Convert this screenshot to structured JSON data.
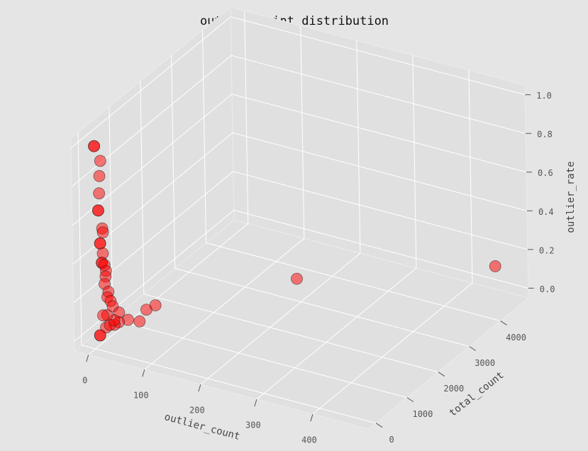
{
  "chart_data": {
    "type": "scatter3d",
    "title": "outlier point distribution",
    "xlabel": "outlier_count",
    "ylabel": "total_count",
    "zlabel": "outlier_rate",
    "xlim": [
      -25,
      500
    ],
    "ylim": [
      -230,
      4900
    ],
    "zlim": [
      -0.05,
      1.05
    ],
    "xticks": [
      0,
      100,
      200,
      300,
      400
    ],
    "yticks": [
      0,
      1000,
      2000,
      3000,
      4000
    ],
    "zticks": [
      {
        "value": 0,
        "label": "0.0"
      },
      0.2,
      0.4,
      0.6,
      0.8,
      {
        "value": 1,
        "label": "1.0"
      }
    ],
    "grid": true,
    "series": [
      {
        "color": "#ff0000",
        "x": [
          3,
          3,
          13,
          11,
          10,
          8,
          8,
          14,
          15,
          10,
          10,
          14,
          12,
          12,
          16,
          18,
          17,
          15,
          20,
          18,
          22,
          24,
          30,
          8,
          0,
          0,
          25,
          30,
          35,
          40,
          20,
          15,
          12,
          20,
          15,
          10,
          193,
          450
        ],
        "y": [
          3,
          3,
          14,
          13,
          13,
          12,
          12,
          24,
          27,
          20,
          20,
          31,
          30,
          30,
          41,
          50,
          52,
          52,
          80,
          82,
          110,
          141,
          231,
          200,
          150,
          150,
          600,
          1100,
          1300,
          700,
          400,
          350,
          250,
          250,
          120,
          80,
          3000,
          4750
        ],
        "z": [
          1.0,
          1.0,
          0.93,
          0.85,
          0.76,
          0.67,
          0.67,
          0.58,
          0.56,
          0.5,
          0.5,
          0.45,
          0.4,
          0.4,
          0.39,
          0.36,
          0.33,
          0.29,
          0.25,
          0.22,
          0.2,
          0.17,
          0.13,
          0.04,
          0.0,
          0.0,
          0.04,
          0.03,
          0.03,
          0.03,
          0.05,
          0.04,
          0.05,
          0.08,
          0.12,
          0.12,
          0.064,
          0.095
        ]
      }
    ]
  }
}
